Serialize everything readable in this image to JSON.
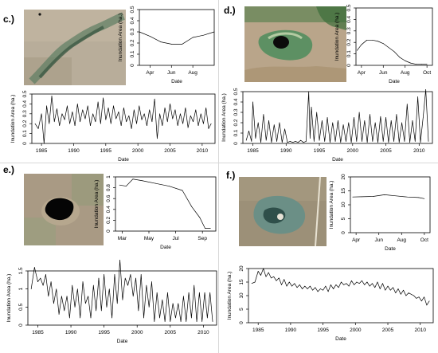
{
  "panels": {
    "c": {
      "label": "c.)"
    },
    "d": {
      "label": "d.)"
    },
    "e": {
      "label": "e.)"
    },
    "f": {
      "label": "f.)"
    }
  },
  "colors": {
    "line": "#000000",
    "axis": "#000000"
  },
  "chart_data": [
    {
      "id": "c-seasonal",
      "type": "line",
      "xlabel": "Date",
      "ylabel": "Inundation Area (ha.)",
      "x_ticks": [
        "Apr",
        "Jun",
        "Aug"
      ],
      "x": [
        3.0,
        4.0,
        5.0,
        6.0,
        7.0,
        8.0,
        9.0,
        10.0
      ],
      "values": [
        0.3,
        0.26,
        0.21,
        0.19,
        0.19,
        0.25,
        0.27,
        0.3
      ],
      "ylim": [
        0.0,
        0.5
      ],
      "y_ticks": [
        0.0,
        0.1,
        0.2,
        0.3,
        0.4,
        0.5
      ],
      "xlim": [
        3.0,
        10.0
      ],
      "x_tick_pos": [
        4,
        6,
        8
      ]
    },
    {
      "id": "c-longterm",
      "type": "line",
      "xlabel": "Date",
      "ylabel": "Inundation Area (ha.)",
      "x_ticks": [
        "1985",
        "1990",
        "1995",
        "2000",
        "2005",
        "2010"
      ],
      "x_tick_pos": [
        1985,
        1990,
        1995,
        2000,
        2005,
        2010
      ],
      "xlim": [
        1983.5,
        2012.0
      ],
      "ylim": [
        0.0,
        0.5
      ],
      "y_ticks": [
        0.0,
        0.1,
        0.2,
        0.3,
        0.4,
        0.5
      ],
      "x": [
        1984.0,
        1984.5,
        1985.0,
        1985.4,
        1985.8,
        1986.2,
        1986.6,
        1987.0,
        1987.4,
        1987.8,
        1988.2,
        1988.6,
        1989.0,
        1989.4,
        1989.8,
        1990.2,
        1990.6,
        1991.0,
        1991.4,
        1991.8,
        1992.2,
        1992.6,
        1993.0,
        1993.4,
        1993.8,
        1994.2,
        1994.6,
        1995.0,
        1995.4,
        1995.8,
        1996.2,
        1996.6,
        1997.0,
        1997.4,
        1997.8,
        1998.2,
        1998.6,
        1999.0,
        1999.4,
        1999.8,
        2000.2,
        2000.6,
        2001.0,
        2001.4,
        2001.8,
        2002.2,
        2002.6,
        2003.0,
        2003.4,
        2003.8,
        2004.2,
        2004.6,
        2005.0,
        2005.4,
        2005.8,
        2006.2,
        2006.6,
        2007.0,
        2007.4,
        2007.8,
        2008.2,
        2008.6,
        2009.0,
        2009.4,
        2009.8,
        2010.2,
        2010.6,
        2011.0,
        2011.4
      ],
      "values": [
        0.2,
        0.15,
        0.3,
        0.0,
        0.38,
        0.2,
        0.48,
        0.22,
        0.35,
        0.18,
        0.3,
        0.24,
        0.38,
        0.2,
        0.32,
        0.18,
        0.4,
        0.22,
        0.34,
        0.25,
        0.38,
        0.18,
        0.3,
        0.22,
        0.42,
        0.2,
        0.46,
        0.24,
        0.36,
        0.2,
        0.38,
        0.25,
        0.32,
        0.18,
        0.36,
        0.22,
        0.28,
        0.15,
        0.34,
        0.2,
        0.38,
        0.24,
        0.3,
        0.18,
        0.34,
        0.22,
        0.45,
        0.05,
        0.3,
        0.18,
        0.36,
        0.22,
        0.4,
        0.25,
        0.34,
        0.18,
        0.3,
        0.2,
        0.36,
        0.16,
        0.28,
        0.22,
        0.34,
        0.18,
        0.3,
        0.2,
        0.36,
        0.15,
        0.2
      ]
    },
    {
      "id": "d-seasonal",
      "type": "line",
      "xlabel": "Date",
      "ylabel": "Inundation Area (ha.)",
      "x_ticks": [
        "Apr",
        "Jun",
        "Aug",
        "Oct"
      ],
      "x_tick_pos": [
        4,
        6,
        8,
        10
      ],
      "xlim": [
        3.5,
        10.5
      ],
      "ylim": [
        0.0,
        0.5
      ],
      "y_ticks": [
        0.0,
        0.1,
        0.2,
        0.3,
        0.4,
        0.5
      ],
      "x": [
        3.6,
        4.0,
        4.5,
        5.0,
        5.5,
        6.0,
        7.0,
        7.5,
        8.0,
        8.5,
        9.0,
        9.5,
        10.0
      ],
      "values": [
        0.13,
        0.18,
        0.22,
        0.22,
        0.21,
        0.19,
        0.12,
        0.07,
        0.04,
        0.02,
        0.01,
        0.01,
        0.01
      ]
    },
    {
      "id": "d-longterm",
      "type": "line",
      "xlabel": "Date",
      "ylabel": "Inundation Area (ha.)",
      "x_ticks": [
        "1985",
        "1990",
        "1995",
        "2000",
        "2005",
        "2010"
      ],
      "x_tick_pos": [
        1985,
        1990,
        1995,
        2000,
        2005,
        2010
      ],
      "xlim": [
        1983.5,
        2012.0
      ],
      "ylim": [
        0.0,
        0.5
      ],
      "y_ticks": [
        0.0,
        0.1,
        0.2,
        0.3,
        0.4,
        0.5
      ],
      "x": [
        1984.0,
        1984.4,
        1984.8,
        1985.0,
        1985.4,
        1985.8,
        1986.2,
        1986.6,
        1987.0,
        1987.4,
        1987.8,
        1988.2,
        1988.6,
        1989.0,
        1989.4,
        1989.8,
        1990.2,
        1990.6,
        1991.0,
        1991.4,
        1991.8,
        1992.2,
        1992.6,
        1993.0,
        1993.4,
        1993.6,
        1993.8,
        1994.2,
        1994.6,
        1995.0,
        1995.4,
        1995.8,
        1996.2,
        1996.6,
        1997.0,
        1997.4,
        1997.8,
        1998.2,
        1998.6,
        1999.0,
        1999.4,
        1999.8,
        2000.2,
        2000.6,
        2001.0,
        2001.4,
        2001.8,
        2002.2,
        2002.6,
        2003.0,
        2003.4,
        2003.8,
        2004.2,
        2004.6,
        2005.0,
        2005.4,
        2005.8,
        2006.2,
        2006.6,
        2007.0,
        2007.4,
        2007.8,
        2008.2,
        2008.6,
        2009.0,
        2009.4,
        2009.8,
        2010.2,
        2010.6,
        2011.0,
        2011.4
      ],
      "values": [
        0.03,
        0.12,
        0.02,
        0.4,
        0.05,
        0.2,
        0.01,
        0.28,
        0.03,
        0.22,
        0.01,
        0.18,
        0.02,
        0.2,
        0.01,
        0.14,
        0.01,
        0.02,
        0.01,
        0.02,
        0.01,
        0.03,
        0.01,
        0.02,
        0.5,
        0.05,
        0.35,
        0.02,
        0.3,
        0.03,
        0.22,
        0.02,
        0.25,
        0.01,
        0.2,
        0.02,
        0.22,
        0.01,
        0.18,
        0.02,
        0.2,
        0.01,
        0.25,
        0.02,
        0.3,
        0.02,
        0.22,
        0.01,
        0.28,
        0.02,
        0.2,
        0.01,
        0.26,
        0.02,
        0.25,
        0.01,
        0.22,
        0.02,
        0.28,
        0.01,
        0.2,
        0.02,
        0.38,
        0.01,
        0.22,
        0.02,
        0.45,
        0.01,
        0.25,
        0.52,
        0.02
      ]
    },
    {
      "id": "e-seasonal",
      "type": "line",
      "xlabel": "Date",
      "ylabel": "Inundation Area (ha.)",
      "x_ticks": [
        "Mar",
        "May",
        "Jul",
        "Sep"
      ],
      "x_tick_pos": [
        3,
        5,
        7,
        9
      ],
      "xlim": [
        2.5,
        10.0
      ],
      "ylim": [
        0.0,
        1.0
      ],
      "y_ticks": [
        0.0,
        0.2,
        0.4,
        0.6,
        0.8,
        1.0
      ],
      "x": [
        2.8,
        3.3,
        3.8,
        4.5,
        5.5,
        6.5,
        7.5,
        8.2,
        8.8,
        9.2,
        9.6
      ],
      "values": [
        0.85,
        0.83,
        0.96,
        0.93,
        0.88,
        0.83,
        0.75,
        0.45,
        0.25,
        0.05,
        0.05
      ]
    },
    {
      "id": "e-longterm",
      "type": "line",
      "xlabel": "Date",
      "ylabel": "Inundation Area (ha.)",
      "x_ticks": [
        "1985",
        "1990",
        "1995",
        "2000",
        "2005",
        "2010"
      ],
      "x_tick_pos": [
        1985,
        1990,
        1995,
        2000,
        2005,
        2010
      ],
      "xlim": [
        1983.5,
        2012.0
      ],
      "ylim": [
        0.0,
        1.5
      ],
      "y_ticks": [
        0.0,
        0.5,
        1.0,
        1.5
      ],
      "x": [
        1984.0,
        1984.5,
        1985.0,
        1985.4,
        1985.8,
        1986.2,
        1986.6,
        1987.0,
        1987.4,
        1987.8,
        1988.2,
        1988.6,
        1989.0,
        1989.4,
        1989.8,
        1990.2,
        1990.6,
        1991.0,
        1991.4,
        1991.8,
        1992.2,
        1992.6,
        1993.0,
        1993.4,
        1993.8,
        1994.2,
        1994.6,
        1995.0,
        1995.4,
        1995.8,
        1996.2,
        1996.6,
        1997.0,
        1997.4,
        1997.8,
        1998.2,
        1998.6,
        1999.0,
        1999.4,
        1999.8,
        2000.2,
        2000.6,
        2001.0,
        2001.4,
        2001.8,
        2002.2,
        2002.6,
        2003.0,
        2003.4,
        2003.8,
        2004.2,
        2004.6,
        2005.0,
        2005.4,
        2005.8,
        2006.2,
        2006.6,
        2007.0,
        2007.4,
        2007.8,
        2008.2,
        2008.6,
        2009.0,
        2009.4,
        2009.8,
        2010.2,
        2010.6,
        2011.0,
        2011.4
      ],
      "values": [
        1.0,
        1.6,
        1.2,
        1.3,
        1.1,
        1.4,
        0.8,
        1.2,
        0.6,
        1.0,
        0.3,
        0.8,
        0.4,
        0.8,
        0.2,
        1.1,
        0.5,
        1.0,
        0.2,
        1.2,
        0.6,
        0.8,
        0.2,
        1.1,
        0.4,
        1.3,
        0.4,
        1.4,
        0.5,
        1.0,
        0.2,
        1.4,
        0.6,
        1.8,
        0.7,
        1.3,
        1.1,
        1.4,
        0.8,
        1.3,
        0.4,
        1.4,
        0.2,
        1.1,
        0.5,
        1.2,
        0.1,
        0.9,
        0.2,
        0.7,
        0.1,
        0.9,
        0.1,
        0.6,
        0.2,
        0.6,
        0.1,
        0.8,
        0.1,
        0.9,
        0.2,
        1.1,
        0.1,
        0.9,
        0.1,
        0.9,
        0.2,
        0.9,
        0.1
      ]
    },
    {
      "id": "f-seasonal",
      "type": "line",
      "xlabel": "Date",
      "ylabel": "Inundation Area (ha.)",
      "x_ticks": [
        "Apr",
        "Jun",
        "Aug",
        "Oct"
      ],
      "x_tick_pos": [
        4,
        6,
        8,
        10
      ],
      "xlim": [
        3.5,
        10.5
      ],
      "ylim": [
        0,
        20
      ],
      "y_ticks": [
        0,
        5,
        10,
        15,
        20
      ],
      "x": [
        3.7,
        4.5,
        5.5,
        6.5,
        7.5,
        8.5,
        9.5,
        10.0
      ],
      "values": [
        12.8,
        12.9,
        13.0,
        13.6,
        13.2,
        12.8,
        12.6,
        12.2
      ]
    },
    {
      "id": "f-longterm",
      "type": "line",
      "xlabel": "Date",
      "ylabel": "Inundation Area (ha.)",
      "x_ticks": [
        "1985",
        "1990",
        "1995",
        "2000",
        "2005",
        "2010"
      ],
      "x_tick_pos": [
        1985,
        1990,
        1995,
        2000,
        2005,
        2010
      ],
      "xlim": [
        1983.5,
        2012.0
      ],
      "ylim": [
        0,
        20
      ],
      "y_ticks": [
        0,
        5,
        10,
        15,
        20
      ],
      "x": [
        1984.0,
        1984.5,
        1985.0,
        1985.4,
        1985.8,
        1986.2,
        1986.6,
        1987.0,
        1987.4,
        1987.8,
        1988.2,
        1988.6,
        1989.0,
        1989.4,
        1989.8,
        1990.2,
        1990.6,
        1991.0,
        1991.4,
        1991.8,
        1992.2,
        1992.6,
        1993.0,
        1993.4,
        1993.8,
        1994.2,
        1994.6,
        1995.0,
        1995.4,
        1995.8,
        1996.2,
        1996.6,
        1997.0,
        1997.4,
        1997.8,
        1998.2,
        1998.6,
        1999.0,
        1999.4,
        1999.8,
        2000.2,
        2000.6,
        2001.0,
        2001.4,
        2001.8,
        2002.2,
        2002.6,
        2003.0,
        2003.4,
        2003.8,
        2004.2,
        2004.6,
        2005.0,
        2005.4,
        2005.8,
        2006.2,
        2006.6,
        2007.0,
        2007.4,
        2007.8,
        2008.2,
        2008.6,
        2009.0,
        2009.4,
        2009.8,
        2010.2,
        2010.6,
        2011.0,
        2011.4
      ],
      "values": [
        14.5,
        15.0,
        19.0,
        17.5,
        20.0,
        17.0,
        18.5,
        16.5,
        17.0,
        15.5,
        16.5,
        14.0,
        16.0,
        13.5,
        15.0,
        13.5,
        14.5,
        13.0,
        14.0,
        12.5,
        13.5,
        12.5,
        13.5,
        12.0,
        13.0,
        11.5,
        12.5,
        12.0,
        13.5,
        11.5,
        14.0,
        12.5,
        14.0,
        13.0,
        15.0,
        14.0,
        14.5,
        13.5,
        15.5,
        14.0,
        15.0,
        14.5,
        15.5,
        14.0,
        15.0,
        13.5,
        14.5,
        13.0,
        15.0,
        12.5,
        14.5,
        12.0,
        13.5,
        12.0,
        13.0,
        11.0,
        12.5,
        10.5,
        12.0,
        10.0,
        11.0,
        10.5,
        10.0,
        9.0,
        9.5,
        8.0,
        9.5,
        6.5,
        8.0
      ]
    }
  ]
}
